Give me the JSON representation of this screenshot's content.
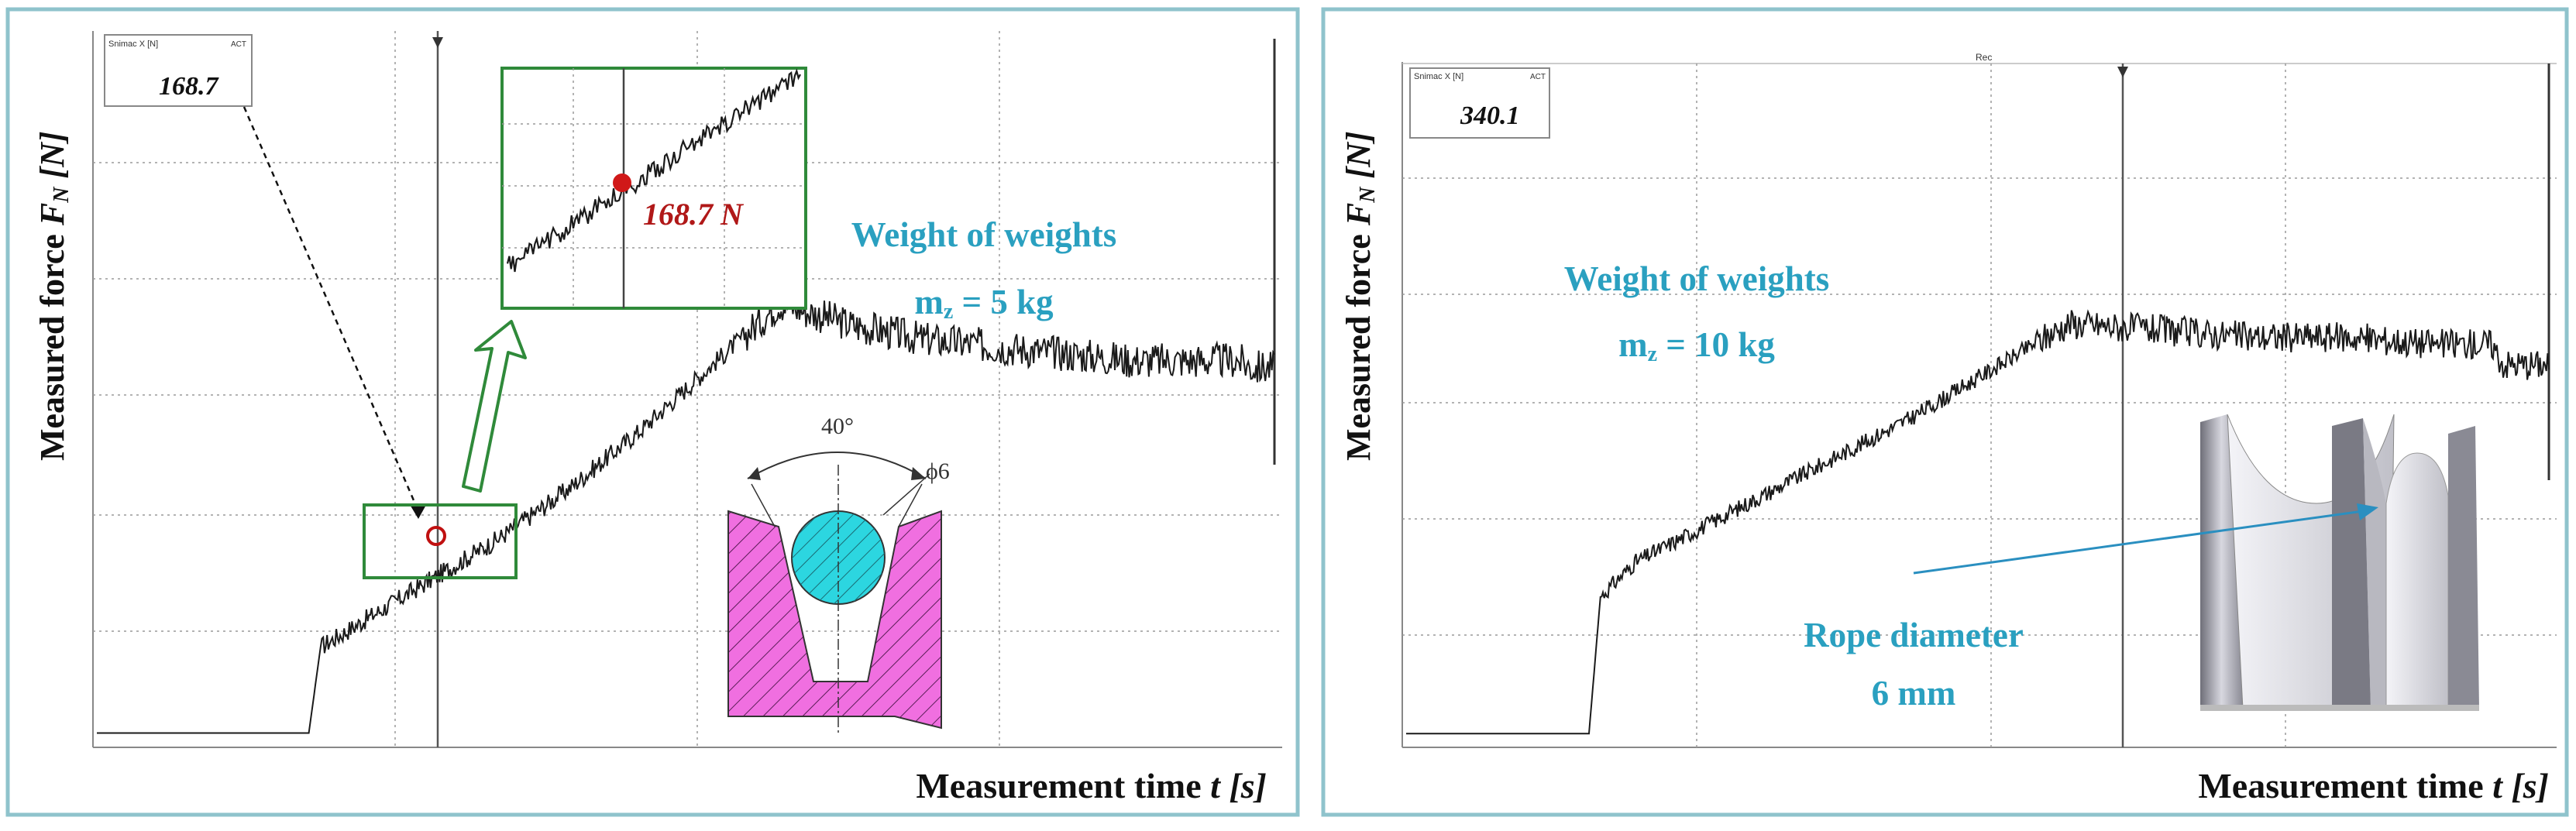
{
  "colors": {
    "frame": "#8fc3cc",
    "trace": "#1a1a1a",
    "grid": "#9a9a9a",
    "accent_text": "#2aa0c0",
    "highlight_box": "#2f8a3a",
    "marker": "#c01010",
    "groove_fill": "#f06fe0",
    "rope_fill": "#2cd6e0"
  },
  "panels": [
    {
      "ylabel_main": "Measured force ",
      "ylabel_sym": "F",
      "ylabel_sub": "N",
      "ylabel_unit": " [N]",
      "xlabel_main": "Measurement time ",
      "xlabel_sym": "t",
      "xlabel_unit": " [s]",
      "cursor_box_header": "Snimac X [N]",
      "cursor_box_tag": "ACT",
      "cursor_value": "168.7",
      "weight_label": "Weight of weights",
      "weight_mass": "m",
      "weight_mass_sub": "z",
      "weight_value": " = 5 kg",
      "zoom_label": "168.7 N",
      "angle_label": "40°",
      "phi_label": "ϕ6"
    },
    {
      "ylabel_main": "Measured force ",
      "ylabel_sym": "F",
      "ylabel_sub": "N",
      "ylabel_unit": " [N]",
      "xlabel_main": "Measurement time ",
      "xlabel_sym": "t",
      "xlabel_unit": " [s]",
      "cursor_box_header": "Snimac X [N]",
      "cursor_box_tag": "ACT",
      "cursor_value": "340.1",
      "top_tag": "Rec",
      "weight_label": "Weight of weights",
      "weight_mass": "m",
      "weight_mass_sub": "z",
      "weight_value": " = 10 kg",
      "rope_label_1": "Rope diameter",
      "rope_label_2": "6 mm"
    }
  ],
  "chart_data": [
    {
      "type": "line",
      "title": "",
      "xlabel": "Measurement time t [s]",
      "ylabel": "Measured force FN [N]",
      "annotated_value": 168.7,
      "series": [
        {
          "x": [
            0,
            0.18,
            0.19,
            0.22,
            0.28,
            0.34,
            0.4,
            0.46,
            0.52,
            0.58,
            0.64,
            0.7,
            0.76,
            0.82,
            0.88,
            0.94,
            0.97,
            0.98,
            1.0
          ],
          "values": [
            0.02,
            0.02,
            0.14,
            0.17,
            0.23,
            0.29,
            0.36,
            0.44,
            0.53,
            0.62,
            0.59,
            0.57,
            0.56,
            0.55,
            0.54,
            0.54,
            0.54,
            0.53,
            0.53
          ]
        }
      ]
    },
    {
      "type": "line",
      "title": "",
      "xlabel": "Measurement time t [s]",
      "ylabel": "Measured force FN [N]",
      "annotated_value": 340.1,
      "series": [
        {
          "x": [
            0,
            0.16,
            0.17,
            0.2,
            0.28,
            0.36,
            0.44,
            0.52,
            0.58,
            0.66,
            0.74,
            0.82,
            0.9,
            0.95,
            0.96,
            1.0
          ],
          "values": [
            0.02,
            0.02,
            0.22,
            0.27,
            0.34,
            0.41,
            0.48,
            0.56,
            0.62,
            0.61,
            0.6,
            0.6,
            0.59,
            0.59,
            0.56,
            0.56
          ]
        }
      ]
    }
  ]
}
